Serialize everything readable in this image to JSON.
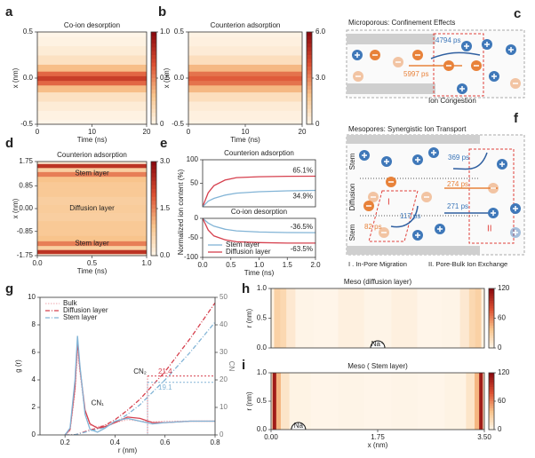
{
  "chart_data": [
    {
      "type": "heatmap",
      "label": "a",
      "title": "Co-ion desorption",
      "xlabel": "Time (ns)",
      "ylabel": "x (nm)",
      "xlim": [
        0,
        20
      ],
      "xticks": [
        0,
        10,
        20
      ],
      "ylim": [
        -0.5,
        0.5
      ],
      "yticks": [
        -0.5,
        {
          "value": 0,
          "label": "0.0"
        },
        0.5
      ],
      "clim": [
        0,
        1
      ],
      "cticks": [
        0,
        0.5,
        {
          "value": 1,
          "label": "1.0"
        }
      ],
      "y": [
        -0.5,
        -0.4,
        -0.3,
        -0.2,
        -0.1,
        -0.05,
        0,
        0.05,
        0.1,
        0.2,
        0.3,
        0.4,
        0.5
      ],
      "values": [
        0.02,
        0.04,
        0.08,
        0.15,
        0.35,
        0.6,
        0.75,
        0.6,
        0.35,
        0.15,
        0.08,
        0.04,
        0.02
      ]
    },
    {
      "type": "heatmap",
      "label": "b",
      "title": "Counterion adsorption",
      "xlabel": "Time (ns)",
      "ylabel": "x (nm)",
      "xlim": [
        0,
        20
      ],
      "xticks": [
        0,
        10,
        20
      ],
      "ylim": [
        -0.5,
        0.5
      ],
      "yticks": [
        -0.5,
        {
          "value": 0,
          "label": "0.0"
        },
        0.5
      ],
      "clim": [
        0,
        6
      ],
      "cticks": [
        0,
        {
          "value": 3,
          "label": "3.0"
        },
        {
          "value": 6,
          "label": "6.0"
        }
      ],
      "y": [
        -0.5,
        -0.4,
        -0.3,
        -0.2,
        -0.1,
        -0.05,
        0,
        0.05,
        0.1,
        0.2,
        0.3,
        0.4,
        0.5
      ],
      "values": [
        0.2,
        0.3,
        0.5,
        1.0,
        2.2,
        3.4,
        3.8,
        3.4,
        2.2,
        1.0,
        0.5,
        0.3,
        0.2
      ]
    },
    {
      "type": "heatmap",
      "label": "d",
      "title": "Counterion adsorption",
      "xlabel": "Time (ns)",
      "ylabel": "x (nm)",
      "xlim": [
        0,
        1
      ],
      "xticks": [
        {
          "value": 0,
          "label": "0.0"
        },
        0.5,
        {
          "value": 1,
          "label": "1.0"
        }
      ],
      "ylim": [
        -1.75,
        1.75
      ],
      "yticks": [
        1.75,
        0.85,
        {
          "value": 0,
          "label": "0.00"
        },
        -0.85,
        -1.75
      ],
      "clim": [
        0,
        3
      ],
      "cticks": [
        {
          "value": 0,
          "label": "0.0"
        },
        1.5,
        {
          "value": 3,
          "label": "3.0"
        }
      ],
      "y": [
        -1.75,
        -1.6,
        -1.45,
        -1.3,
        -1.1,
        -0.9,
        -0.6,
        -0.3,
        0,
        0.3,
        0.6,
        0.9,
        1.1,
        1.3,
        1.45,
        1.6,
        1.75
      ],
      "values": [
        0.3,
        2.4,
        0.8,
        1.6,
        1.0,
        0.9,
        0.9,
        0.8,
        0.85,
        0.8,
        0.9,
        0.9,
        1.0,
        1.6,
        0.8,
        2.4,
        0.3
      ],
      "annotations": [
        {
          "text": "Stem layer",
          "x": 0.5,
          "y": 1.3
        },
        {
          "text": "Diffusion layer",
          "x": 0.5,
          "y": 0
        },
        {
          "text": "Stem layer",
          "x": 0.5,
          "y": -1.3
        }
      ]
    },
    {
      "type": "line",
      "label": "e",
      "title": "Counterion adsorption",
      "ylabel": "Normalized ion content (%)",
      "xlim": [
        0,
        2
      ],
      "ylim": [
        0,
        100
      ],
      "yticks": [
        100,
        50
      ],
      "x": [
        0,
        0.1,
        0.2,
        0.4,
        0.6,
        1.0,
        1.5,
        2.0
      ],
      "series": [
        {
          "name": "Diffusion layer",
          "color": "#d6404e",
          "values": [
            0,
            30,
            45,
            57,
            62,
            64,
            65,
            65.1
          ]
        },
        {
          "name": "Stem layer",
          "color": "#82b4d6",
          "values": [
            0,
            12,
            18,
            25,
            29,
            32,
            34,
            34.9
          ]
        }
      ],
      "annotations": [
        {
          "text": "65.1%",
          "value": 65.1
        },
        {
          "text": "34.9%",
          "value": 34.9
        }
      ]
    },
    {
      "type": "line",
      "title": "Co-ion desorption",
      "xlabel": "Time (ns)",
      "xlim": [
        0,
        2
      ],
      "xticks": [
        {
          "value": 0,
          "label": "0.0"
        },
        0.5,
        {
          "value": 1,
          "label": "1.0"
        },
        1.5,
        {
          "value": 2,
          "label": "2.0"
        }
      ],
      "ylim": [
        -100,
        0
      ],
      "yticks": [
        0,
        -50,
        -100
      ],
      "legend": "lower left",
      "x": [
        0,
        0.1,
        0.2,
        0.4,
        0.6,
        1.0,
        1.5,
        2.0
      ],
      "series": [
        {
          "name": "Stem layer",
          "color": "#82b4d6",
          "values": [
            0,
            -12,
            -20,
            -28,
            -32,
            -35,
            -36.3,
            -36.5
          ]
        },
        {
          "name": "Diffusion layer",
          "color": "#d6404e",
          "values": [
            0,
            -30,
            -45,
            -55,
            -60,
            -62,
            -63.3,
            -63.5
          ]
        }
      ],
      "annotations": [
        {
          "text": "-36.5%",
          "value": -36.5
        },
        {
          "text": "-63.5%",
          "value": -63.5
        }
      ]
    },
    {
      "type": "line",
      "label": "g",
      "xlabel": "r (nm)",
      "ylabel": "g (r)",
      "y2label": "CN",
      "xlim": [
        0.1,
        0.8
      ],
      "xticks": [
        0.2,
        0.4,
        0.6,
        0.8
      ],
      "ylim": [
        0,
        10
      ],
      "yticks": [
        0,
        2,
        4,
        6,
        8,
        10
      ],
      "y2lim": [
        0,
        50
      ],
      "y2ticks": [
        0,
        10,
        20,
        30,
        40,
        50
      ],
      "legend": "upper left",
      "x": [
        0.2,
        0.22,
        0.24,
        0.25,
        0.26,
        0.28,
        0.3,
        0.33,
        0.36,
        0.4,
        0.45,
        0.5,
        0.55,
        0.6,
        0.7,
        0.8
      ],
      "series": [
        {
          "name": "Bulk",
          "color": "#f2b8bd",
          "dash": "dotted",
          "values": [
            0,
            0.3,
            3,
            6,
            4.5,
            1.6,
            0.7,
            0.6,
            0.7,
            0.9,
            1.1,
            1.0,
            0.95,
            1.0,
            1.0,
            1.0
          ]
        },
        {
          "name": "Diffusion layer",
          "color": "#d6404e",
          "dash": "dashdot",
          "axis": "y2",
          "values": [
            0,
            0,
            0.1,
            0.3,
            0.6,
            1.2,
            1.8,
            2.5,
            3.5,
            5.5,
            9,
            13,
            18,
            23,
            35,
            48
          ]
        },
        {
          "name": "Stem layer",
          "color": "#82b4d6",
          "dash": "dashdot",
          "axis": "y2",
          "values": [
            0,
            0,
            0.1,
            0.3,
            0.5,
            1,
            1.5,
            2,
            2.8,
            4.5,
            7.5,
            11,
            15.5,
            20,
            30,
            41
          ]
        },
        {
          "color": "#d6404e",
          "values": [
            0,
            0.4,
            3.5,
            6.8,
            4.8,
            1.8,
            0.8,
            0.5,
            0.6,
            0.9,
            1.3,
            1.2,
            0.9,
            0.9,
            1.0,
            1.0
          ]
        },
        {
          "color": "#82b4d6",
          "values": [
            0,
            0.5,
            4,
            7.2,
            5,
            1.5,
            0.4,
            0.2,
            0.5,
            1.0,
            1.2,
            1.0,
            0.8,
            0.9,
            1.0,
            1.0
          ]
        }
      ],
      "annotations": [
        {
          "text": "CN₁",
          "x": 0.33,
          "y": 2.3
        },
        {
          "text": "CN₂",
          "x": 0.5,
          "y": 4.6
        }
      ],
      "refs": [
        {
          "x": 0.53,
          "y2": 21.4,
          "label": "21.4",
          "color": "#d6404e"
        },
        {
          "x": 0.53,
          "y2": 19.1,
          "label": "19.1",
          "color": "#82b4d6"
        }
      ]
    },
    {
      "type": "heatmap",
      "label": "h",
      "title": "Meso (diffusion layer)",
      "ylabel": "r (nm)",
      "axis": "x",
      "xlim": [
        0,
        3.5
      ],
      "ylim": [
        0,
        1
      ],
      "yticks": [
        {
          "value": 0,
          "label": "0.0"
        },
        0.5,
        {
          "value": 1,
          "label": "1.0"
        }
      ],
      "clim": [
        0,
        120
      ],
      "cticks": [
        0,
        60,
        120
      ],
      "x": [
        0,
        0.1,
        0.2,
        0.3,
        0.5,
        0.9,
        1.3,
        1.75,
        2.2,
        2.6,
        3.0,
        3.2,
        3.3,
        3.4,
        3.5
      ],
      "values": [
        5,
        30,
        25,
        12,
        3,
        2,
        6,
        3,
        6,
        2,
        3,
        12,
        25,
        30,
        5
      ],
      "annotations": [
        {
          "text": "Na⁺",
          "x": 1.75,
          "y": 0
        }
      ]
    },
    {
      "type": "heatmap",
      "label": "i",
      "title": "Meso ( Stem layer)",
      "xlabel": "x (nm)",
      "ylabel": "r (nm)",
      "axis": "x",
      "xlim": [
        0,
        3.5
      ],
      "xticks": [
        {
          "value": 0,
          "label": "0.00"
        },
        1.75,
        {
          "value": 3.5,
          "label": "3.50"
        }
      ],
      "ylim": [
        0,
        1
      ],
      "yticks": [
        {
          "value": 0,
          "label": "0.0"
        },
        0.5,
        {
          "value": 1,
          "label": "1.0"
        }
      ],
      "clim": [
        0,
        120
      ],
      "cticks": [
        0,
        60,
        120
      ],
      "x": [
        0,
        0.05,
        0.12,
        0.2,
        0.4,
        0.9,
        1.3,
        1.75,
        2.2,
        2.6,
        3.1,
        3.3,
        3.38,
        3.45,
        3.5
      ],
      "values": [
        20,
        110,
        45,
        15,
        4,
        2,
        3,
        2,
        3,
        2,
        4,
        15,
        45,
        110,
        20
      ],
      "annotations": [
        {
          "text": "Na",
          "x": 0.45,
          "y": 0
        }
      ]
    }
  ],
  "diagrams": {
    "c": {
      "label": "c",
      "title": "Microporous: Confinement Effects",
      "t1": "4794 ps",
      "t2": "5997 ps",
      "note": "Ion Congestion"
    },
    "f": {
      "label": "f",
      "title": "Mesopores: Synergistic Ion Transport",
      "stem1": "Stem",
      "diffusion": "Diffusion",
      "stem2": "Stem",
      "t1": "369 ps",
      "t2": "274 ps",
      "t3": "271 ps",
      "t4": "117 ps",
      "t5": "82 ps",
      "r1": "I",
      "r2": "II",
      "legend1": "I . In-Pore Migration",
      "legend2": "II. Pore-Bulk Ion Exchange"
    }
  }
}
